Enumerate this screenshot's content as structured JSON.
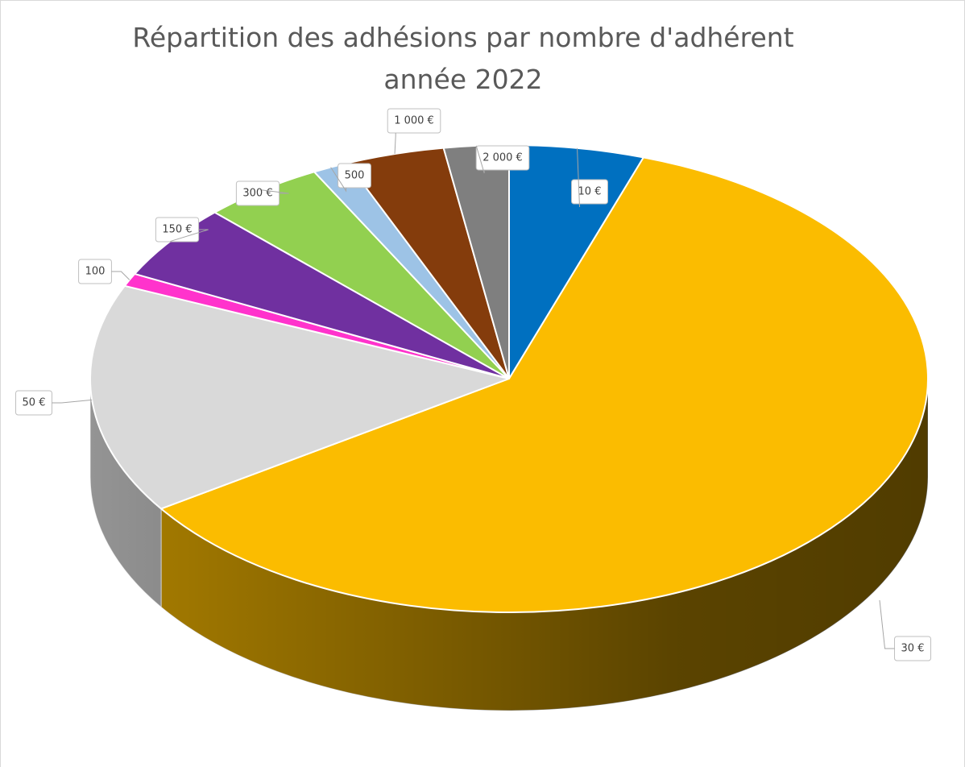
{
  "chart_data": {
    "type": "pie3d",
    "title": [
      "Répartition des adhésions par nombre d'adhérent",
      "année 2022"
    ],
    "categories": [
      "10 €",
      "30 €",
      "50 €",
      "100",
      "150 €",
      "300 €",
      "500",
      "1 000 €",
      "2 000 €"
    ],
    "values": [
      5.2,
      60.4,
      15.9,
      0.9,
      5.2,
      4.7,
      1.4,
      3.8,
      2.5
    ],
    "colors": [
      "#0070c0",
      "#fbbc00",
      "#d9d9d9",
      "#ff33cc",
      "#7030a0",
      "#92d050",
      "#9dc3e6",
      "#843c0c",
      "#7f7f7f"
    ]
  }
}
